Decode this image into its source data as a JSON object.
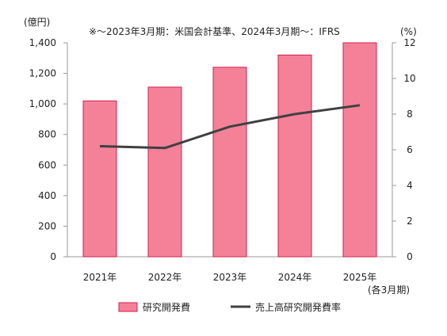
{
  "chart_data": {
    "type": "bar",
    "note": "※～2023年3月期：米国会計基準、2024年3月期～：IFRS",
    "categories": [
      "2021年",
      "2022年",
      "2023年",
      "2024年",
      "2025年"
    ],
    "x_suffix": "(各3月期)",
    "y_left": {
      "unit": "(億円)",
      "ylim": [
        0,
        1400
      ],
      "ticks": [
        0,
        200,
        400,
        600,
        800,
        1000,
        1200,
        1400
      ],
      "tick_labels": [
        "0",
        "200",
        "400",
        "600",
        "800",
        "1,000",
        "1,200",
        "1,400"
      ]
    },
    "y_right": {
      "unit": "(%)",
      "ylim": [
        0,
        12
      ],
      "ticks": [
        0,
        2,
        4,
        6,
        8,
        10,
        12
      ],
      "tick_labels": [
        "0",
        "2",
        "4",
        "6",
        "8",
        "10",
        "12"
      ]
    },
    "series": [
      {
        "name": "研究開発費",
        "type": "bar",
        "axis": "left",
        "values": [
          1020,
          1110,
          1240,
          1320,
          1400
        ]
      },
      {
        "name": "売上高研究開発費率",
        "type": "line",
        "axis": "right",
        "values": [
          6.2,
          6.1,
          7.3,
          8.0,
          8.5
        ]
      }
    ],
    "legend_position": "bottom",
    "grid": false
  },
  "colors": {
    "bar_fill": "#f58199",
    "bar_stroke": "#d1204c",
    "line": "#404040",
    "axis": "#999999"
  }
}
